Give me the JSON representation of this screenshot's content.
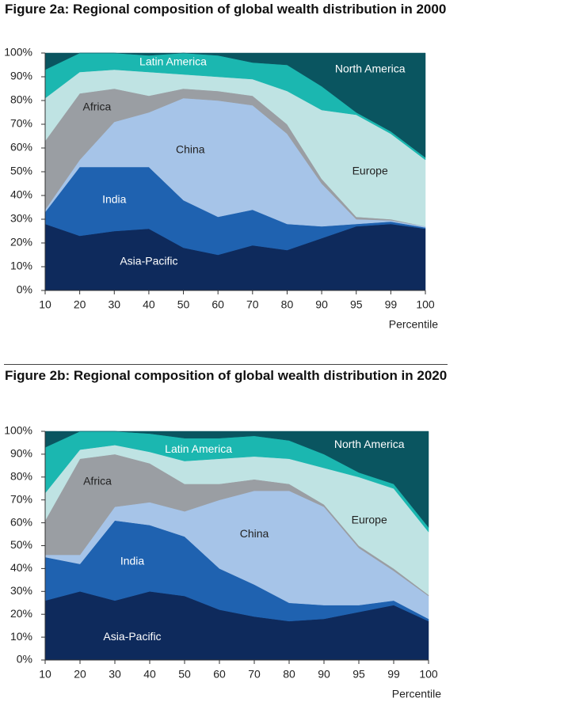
{
  "chart_data": [
    {
      "type": "stacked_area",
      "title": "Figure 2a: Regional composition of global wealth distribution in 2000",
      "x_label": "Percentile",
      "categories": [
        10,
        20,
        30,
        40,
        50,
        60,
        70,
        80,
        90,
        95,
        99,
        100
      ],
      "ylim": [
        0,
        100
      ],
      "yticks": [
        {
          "value": 0,
          "label": "0%"
        },
        {
          "value": 10,
          "label": "10%"
        },
        {
          "value": 20,
          "label": "20%"
        },
        {
          "value": 30,
          "label": "30%"
        },
        {
          "value": 40,
          "label": "40%"
        },
        {
          "value": 50,
          "label": "50%"
        },
        {
          "value": 60,
          "label": "60%"
        },
        {
          "value": 70,
          "label": "70%"
        },
        {
          "value": 80,
          "label": "80%"
        },
        {
          "value": 90,
          "label": "90%"
        },
        {
          "value": 100,
          "label": "100%"
        }
      ],
      "series": [
        {
          "name": "Asia-Pacific",
          "color": "#0e2a5c",
          "values": [
            28,
            23,
            25,
            26,
            18,
            15,
            19,
            17,
            22,
            27,
            28,
            26
          ]
        },
        {
          "name": "India",
          "color": "#1f62b0",
          "values": [
            5,
            29,
            27,
            26,
            20,
            16,
            15,
            11,
            5,
            1,
            1,
            0.5
          ]
        },
        {
          "name": "China",
          "color": "#a6c4e8",
          "values": [
            1,
            3,
            19,
            23,
            43,
            49,
            44,
            38,
            18,
            2,
            0.5,
            0.5
          ]
        },
        {
          "name": "Africa",
          "color": "#9a9ea3",
          "values": [
            29,
            28,
            14,
            7,
            4,
            4,
            4,
            4,
            2,
            1,
            0.5,
            0
          ]
        },
        {
          "name": "Europe",
          "color": "#bfe3e3",
          "values": [
            18,
            9,
            8,
            10,
            6,
            6,
            7,
            14,
            29,
            43,
            36,
            28
          ]
        },
        {
          "name": "Latin America",
          "color": "#1bb7b0",
          "values": [
            12,
            8,
            7,
            7,
            9,
            9,
            7,
            11,
            10,
            1,
            1,
            1
          ]
        },
        {
          "name": "North America",
          "color": "#0a5560",
          "values": [
            7,
            0,
            0,
            1,
            0,
            1,
            4,
            5,
            14,
            25,
            33,
            44
          ]
        }
      ]
    },
    {
      "type": "stacked_area",
      "title": "Figure 2b: Regional composition of global wealth distribution in 2020",
      "x_label": "Percentile",
      "categories": [
        10,
        20,
        30,
        40,
        50,
        60,
        70,
        80,
        90,
        95,
        99,
        100
      ],
      "ylim": [
        0,
        100
      ],
      "yticks": [
        {
          "value": 0,
          "label": "0%"
        },
        {
          "value": 10,
          "label": "10%"
        },
        {
          "value": 20,
          "label": "20%"
        },
        {
          "value": 30,
          "label": "30%"
        },
        {
          "value": 40,
          "label": "40%"
        },
        {
          "value": 50,
          "label": "50%"
        },
        {
          "value": 60,
          "label": "60%"
        },
        {
          "value": 70,
          "label": "70%"
        },
        {
          "value": 80,
          "label": "80%"
        },
        {
          "value": 90,
          "label": "90%"
        },
        {
          "value": 100,
          "label": "100%"
        }
      ],
      "series": [
        {
          "name": "Asia-Pacific",
          "color": "#0e2a5c",
          "values": [
            26,
            30,
            26,
            30,
            28,
            22,
            19,
            17,
            18,
            21,
            24,
            17
          ]
        },
        {
          "name": "India",
          "color": "#1f62b0",
          "values": [
            19,
            12,
            35,
            29,
            26,
            18,
            14,
            8,
            6,
            3,
            2,
            1
          ]
        },
        {
          "name": "China",
          "color": "#a6c4e8",
          "values": [
            1,
            4,
            6,
            10,
            11,
            30,
            41,
            49,
            43,
            25,
            13,
            10
          ]
        },
        {
          "name": "Africa",
          "color": "#9a9ea3",
          "values": [
            15,
            42,
            23,
            17,
            12,
            7,
            5,
            3,
            1,
            1,
            1,
            0.5
          ]
        },
        {
          "name": "Europe",
          "color": "#bfe3e3",
          "values": [
            12,
            4,
            4,
            5,
            10,
            11,
            10,
            11,
            16,
            30,
            35,
            27.5
          ]
        },
        {
          "name": "Latin America",
          "color": "#1bb7b0",
          "values": [
            20,
            8,
            6,
            8,
            10,
            9,
            9,
            8,
            6,
            2,
            2,
            2
          ]
        },
        {
          "name": "North America",
          "color": "#0a5560",
          "values": [
            7,
            0,
            0,
            1,
            3,
            3,
            2,
            4,
            10,
            18,
            23,
            42
          ]
        }
      ]
    }
  ]
}
